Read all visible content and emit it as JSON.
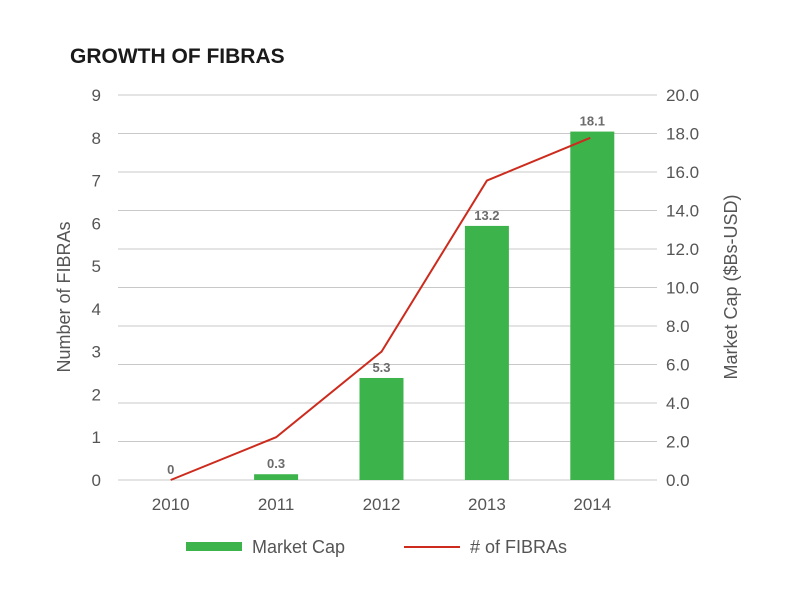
{
  "chart_data": {
    "type": "bar+line",
    "title": "GROWTH OF FIBRAS",
    "categories": [
      "2010",
      "2011",
      "2012",
      "2013",
      "2014"
    ],
    "y_left": {
      "label": "Number of FIBRAs",
      "min": 0,
      "max": 9,
      "ticks": [
        "0",
        "1",
        "2",
        "3",
        "4",
        "5",
        "6",
        "7",
        "8",
        "9"
      ]
    },
    "y_right": {
      "label": "Market Cap ($Bs-USD)",
      "min": 0,
      "max": 20,
      "ticks": [
        "0.0",
        "2.0",
        "4.0",
        "6.0",
        "8.0",
        "10.0",
        "12.0",
        "14.0",
        "16.0",
        "18.0",
        "20.0"
      ]
    },
    "series": [
      {
        "name": "Market Cap",
        "type": "bar",
        "axis": "right",
        "values": [
          0,
          0.3,
          5.3,
          13.2,
          18.1
        ],
        "labels": [
          "0",
          "0.3",
          "5.3",
          "13.2",
          "18.1"
        ],
        "color": "#3cb44b"
      },
      {
        "name": "# of FIBRAs",
        "type": "line",
        "axis": "left",
        "values": [
          0,
          1,
          3,
          7,
          8
        ],
        "color": "#cc2b1d"
      }
    ],
    "grid": true,
    "legend": "bottom"
  }
}
